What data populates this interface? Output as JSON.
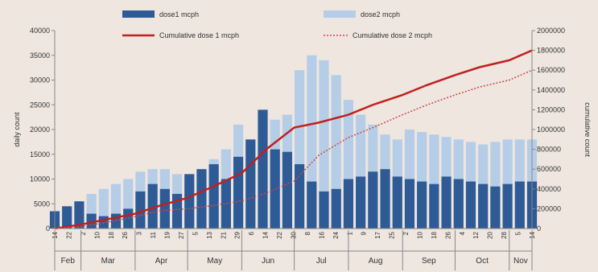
{
  "chart_data": {
    "type": "bar",
    "legend_placement": "top",
    "grid": false,
    "x_start_label": "14 Feb",
    "x_end_label": "14 Nov",
    "ylabel": "daily count",
    "y2label": "cumulative count",
    "ylim": [
      0,
      40000
    ],
    "y2lim": [
      0,
      2000000
    ],
    "y_ticks": [
      "0",
      "5000",
      "10000",
      "15000",
      "20000",
      "25000",
      "30000",
      "35000",
      "40000"
    ],
    "y2_ticks": [
      "0",
      "200000",
      "400000",
      "600000",
      "800000",
      "1000000",
      "1200000",
      "1400000",
      "1600000",
      "1800000",
      "2000000"
    ],
    "x_day_ticks": [
      "14",
      "22",
      "2",
      "10",
      "18",
      "26",
      "3",
      "11",
      "19",
      "27",
      "5",
      "13",
      "21",
      "29",
      "6",
      "14",
      "22",
      "30",
      "8",
      "16",
      "24",
      "1",
      "9",
      "17",
      "25",
      "2",
      "10",
      "18",
      "26",
      "4",
      "12",
      "20",
      "28",
      "5",
      "14"
    ],
    "months": [
      "Feb",
      "Mar",
      "Apr",
      "May",
      "Jun",
      "Jul",
      "Aug",
      "Sep",
      "Oct",
      "Nov"
    ],
    "colors": {
      "dose1": "#2e5a95",
      "dose2": "#b6cde8",
      "cum1": "#c0201f",
      "cum2": "#cf4a48"
    },
    "series": [
      {
        "name": "dose1  mcph",
        "type": "bar",
        "axis": "left",
        "x": [
          "2021-02-14",
          "2021-02-21",
          "2021-02-28",
          "2021-03-07",
          "2021-03-14",
          "2021-03-21",
          "2021-03-28",
          "2021-04-04",
          "2021-04-11",
          "2021-04-18",
          "2021-04-25",
          "2021-05-02",
          "2021-05-09",
          "2021-05-16",
          "2021-05-23",
          "2021-05-30",
          "2021-06-06",
          "2021-06-13",
          "2021-06-20",
          "2021-06-27",
          "2021-07-04",
          "2021-07-11",
          "2021-07-18",
          "2021-07-25",
          "2021-08-01",
          "2021-08-08",
          "2021-08-15",
          "2021-08-22",
          "2021-08-29",
          "2021-09-05",
          "2021-09-12",
          "2021-09-19",
          "2021-09-26",
          "2021-10-03",
          "2021-10-10",
          "2021-10-17",
          "2021-10-24",
          "2021-10-31",
          "2021-11-07",
          "2021-11-14"
        ],
        "values": [
          3500,
          4500,
          5500,
          3000,
          2500,
          3000,
          4000,
          7500,
          9000,
          8000,
          7000,
          11000,
          12000,
          13000,
          10000,
          14500,
          18000,
          24000,
          16000,
          15500,
          13000,
          9500,
          7500,
          8000,
          10000,
          10500,
          11500,
          12000,
          10500,
          10000,
          9500,
          9000,
          10500,
          10000,
          9500,
          9000,
          8500,
          9000,
          9500,
          9500
        ]
      },
      {
        "name": "dose2 mcph",
        "type": "bar",
        "axis": "left",
        "x": [
          "2021-02-14",
          "2021-02-21",
          "2021-02-28",
          "2021-03-07",
          "2021-03-14",
          "2021-03-21",
          "2021-03-28",
          "2021-04-04",
          "2021-04-11",
          "2021-04-18",
          "2021-04-25",
          "2021-05-02",
          "2021-05-09",
          "2021-05-16",
          "2021-05-23",
          "2021-05-30",
          "2021-06-06",
          "2021-06-13",
          "2021-06-20",
          "2021-06-27",
          "2021-07-04",
          "2021-07-11",
          "2021-07-18",
          "2021-07-25",
          "2021-08-01",
          "2021-08-08",
          "2021-08-15",
          "2021-08-22",
          "2021-08-29",
          "2021-09-05",
          "2021-09-12",
          "2021-09-19",
          "2021-09-26",
          "2021-10-03",
          "2021-10-10",
          "2021-10-17",
          "2021-10-24",
          "2021-10-31",
          "2021-11-07",
          "2021-11-14"
        ],
        "values": [
          0,
          0,
          0,
          7000,
          8000,
          9000,
          10000,
          11500,
          12000,
          12000,
          11000,
          10000,
          12000,
          14000,
          16000,
          21000,
          18000,
          16000,
          22000,
          23000,
          32000,
          35000,
          34000,
          31000,
          26000,
          23000,
          21000,
          19000,
          18000,
          20000,
          19500,
          19000,
          18500,
          18000,
          17500,
          17000,
          17500,
          18000,
          18000,
          18000
        ]
      },
      {
        "name": "Cumulative dose 1  mcph",
        "type": "line",
        "axis": "right",
        "x": [
          "2021-02-14",
          "2021-03-01",
          "2021-03-15",
          "2021-04-01",
          "2021-04-15",
          "2021-05-01",
          "2021-05-15",
          "2021-06-01",
          "2021-06-15",
          "2021-07-01",
          "2021-07-15",
          "2021-08-01",
          "2021-08-15",
          "2021-09-01",
          "2021-09-15",
          "2021-10-01",
          "2021-10-15",
          "2021-11-01",
          "2021-11-14"
        ],
        "values": [
          0,
          40000,
          90000,
          150000,
          230000,
          310000,
          420000,
          560000,
          800000,
          1020000,
          1070000,
          1150000,
          1250000,
          1350000,
          1450000,
          1550000,
          1630000,
          1700000,
          1800000
        ]
      },
      {
        "name": "Cumulative dose 2  mcph",
        "type": "line",
        "axis": "right",
        "x": [
          "2021-02-14",
          "2021-03-01",
          "2021-03-15",
          "2021-04-01",
          "2021-04-15",
          "2021-05-01",
          "2021-05-15",
          "2021-06-01",
          "2021-06-15",
          "2021-07-01",
          "2021-07-15",
          "2021-08-01",
          "2021-08-15",
          "2021-09-01",
          "2021-09-15",
          "2021-10-01",
          "2021-10-15",
          "2021-11-01",
          "2021-11-14"
        ],
        "values": [
          0,
          20000,
          60000,
          120000,
          180000,
          200000,
          230000,
          280000,
          360000,
          480000,
          740000,
          920000,
          1020000,
          1150000,
          1250000,
          1350000,
          1430000,
          1500000,
          1600000
        ]
      }
    ]
  }
}
